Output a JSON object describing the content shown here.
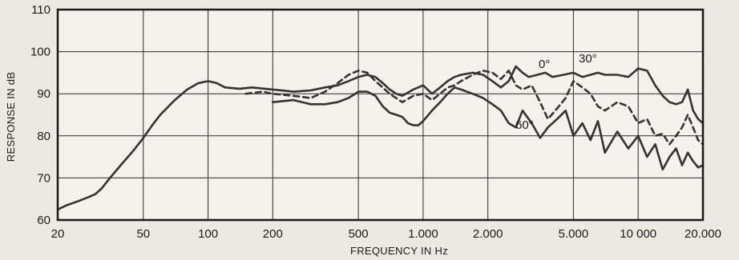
{
  "chart_data": {
    "type": "line",
    "title": "",
    "xlabel": "FREQUENCY IN Hz",
    "ylabel": "RESPONSE IN dB",
    "x_scale": "log",
    "xlim": [
      20,
      20000
    ],
    "ylim": [
      60,
      110
    ],
    "grid": true,
    "x_ticks": [
      20,
      50,
      100,
      200,
      500,
      1000,
      2000,
      5000,
      10000,
      20000
    ],
    "x_tick_labels": [
      "20",
      "50",
      "100",
      "200",
      "500",
      "1.000",
      "2.000",
      "5.000",
      "10 000",
      "20.000"
    ],
    "y_ticks": [
      60,
      70,
      80,
      90,
      100,
      110
    ],
    "y_tick_labels": [
      "60",
      "70",
      "80",
      "90",
      "100",
      "110"
    ],
    "series": [
      {
        "name": "0°",
        "style": "solid",
        "color": "#333333",
        "x": [
          20,
          22,
          25,
          28,
          30,
          32,
          35,
          40,
          45,
          50,
          55,
          60,
          70,
          80,
          90,
          100,
          110,
          120,
          140,
          160,
          200,
          250,
          300,
          350,
          400,
          450,
          500,
          550,
          600,
          650,
          700,
          750,
          800,
          900,
          1000,
          1100,
          1200,
          1300,
          1400,
          1500,
          1700,
          1900,
          2100,
          2300,
          2500,
          2700,
          2900,
          3100,
          3400,
          3700,
          4000,
          4500,
          5000,
          5500,
          6000,
          6500,
          7000,
          8000,
          9000,
          10000,
          11000,
          12000,
          13000,
          14000,
          15000,
          16000,
          17000,
          18000,
          19000,
          20000
        ],
        "y": [
          62.5,
          63.5,
          64.5,
          65.5,
          66.2,
          67.5,
          70.0,
          73.5,
          76.5,
          79.5,
          82.5,
          85.0,
          88.5,
          91.0,
          92.5,
          93.0,
          92.5,
          91.5,
          91.2,
          91.5,
          91.0,
          90.5,
          90.8,
          91.5,
          92.0,
          93.0,
          94.0,
          94.5,
          94.0,
          92.5,
          91.0,
          90.0,
          89.5,
          91.0,
          92.0,
          90.0,
          91.5,
          93.0,
          94.0,
          94.5,
          95.0,
          94.5,
          93.0,
          91.5,
          93.0,
          96.5,
          95.0,
          94.0,
          94.5,
          95.0,
          94.0,
          94.5,
          95.0,
          94.0,
          94.5,
          95.0,
          94.5,
          94.5,
          94.0,
          96.0,
          95.5,
          92.0,
          89.5,
          88.0,
          87.5,
          88.0,
          91.0,
          86.0,
          84.0,
          83.0
        ]
      },
      {
        "name": "30°",
        "style": "dashed",
        "color": "#333333",
        "x": [
          150,
          180,
          200,
          250,
          300,
          350,
          400,
          450,
          500,
          550,
          600,
          700,
          800,
          900,
          1000,
          1100,
          1200,
          1300,
          1400,
          1500,
          1700,
          1900,
          2100,
          2300,
          2500,
          2700,
          2900,
          3200,
          3500,
          3800,
          4200,
          4600,
          5000,
          5500,
          6000,
          6500,
          7000,
          8000,
          9000,
          10000,
          11000,
          12000,
          13000,
          14000,
          15000,
          16000,
          17000,
          18000,
          19000,
          20000
        ],
        "y": [
          90.0,
          90.5,
          90.0,
          89.5,
          89.0,
          90.5,
          92.5,
          94.5,
          95.5,
          95.0,
          93.0,
          90.0,
          88.0,
          89.5,
          90.0,
          88.5,
          90.0,
          91.5,
          92.0,
          93.0,
          94.5,
          95.5,
          95.0,
          93.5,
          95.5,
          92.0,
          91.0,
          92.0,
          88.0,
          84.0,
          86.5,
          89.0,
          93.0,
          91.5,
          90.0,
          87.0,
          86.0,
          88.0,
          87.0,
          83.0,
          84.0,
          80.0,
          80.5,
          78.0,
          80.0,
          82.0,
          85.0,
          82.0,
          79.0,
          78.0
        ]
      },
      {
        "name": "60°",
        "style": "solid",
        "color": "#333333",
        "x": [
          200,
          250,
          300,
          350,
          400,
          450,
          500,
          550,
          600,
          650,
          700,
          750,
          800,
          850,
          900,
          950,
          1000,
          1100,
          1200,
          1300,
          1400,
          1500,
          1700,
          1900,
          2100,
          2300,
          2500,
          2700,
          2900,
          3200,
          3500,
          3800,
          4200,
          4600,
          5000,
          5500,
          6000,
          6500,
          7000,
          8000,
          9000,
          10000,
          11000,
          12000,
          13000,
          14000,
          15000,
          16000,
          17000,
          18000,
          19000,
          20000
        ],
        "y": [
          88.0,
          88.5,
          87.5,
          87.5,
          88.0,
          89.0,
          90.5,
          90.5,
          89.5,
          87.0,
          85.5,
          85.0,
          84.5,
          83.0,
          82.5,
          82.5,
          83.5,
          86.0,
          88.0,
          90.0,
          91.5,
          91.0,
          90.0,
          89.0,
          87.5,
          86.0,
          83.0,
          82.0,
          86.0,
          83.0,
          79.5,
          82.0,
          84.0,
          86.0,
          80.0,
          83.0,
          79.0,
          83.5,
          76.0,
          81.0,
          77.0,
          80.0,
          75.0,
          78.0,
          72.0,
          75.0,
          77.0,
          73.0,
          76.0,
          74.0,
          72.5,
          73.0
        ]
      }
    ]
  }
}
